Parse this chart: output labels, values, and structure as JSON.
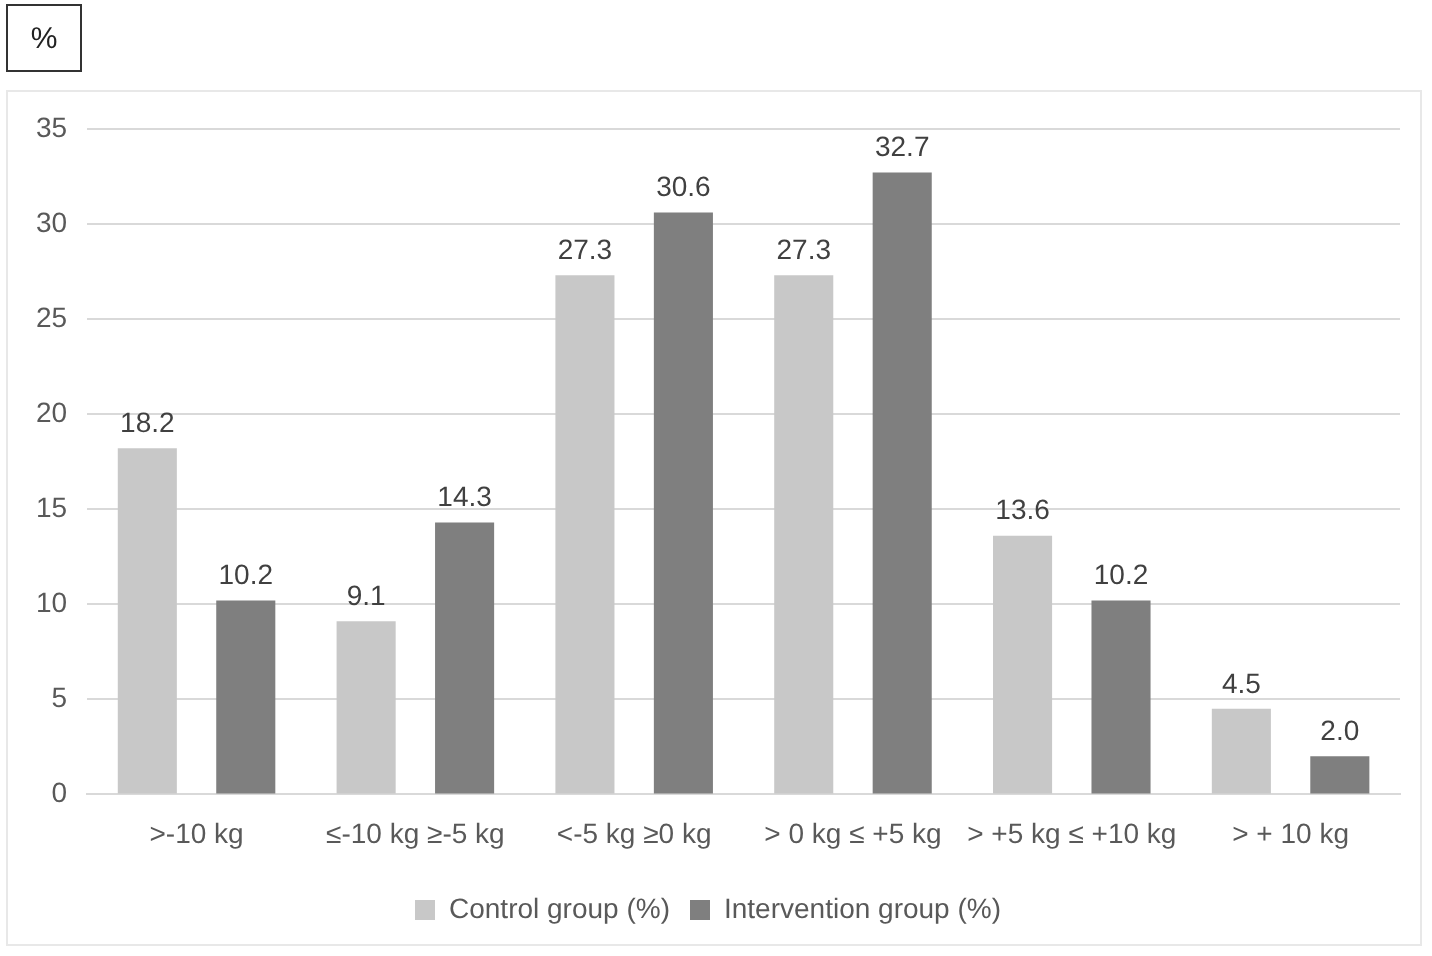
{
  "chart_data": {
    "type": "bar",
    "ylabel": "%",
    "categories": [
      ">-10 kg",
      "≤-10 kg ≥-5 kg",
      "<-5 kg ≥0 kg",
      "> 0 kg ≤ +5 kg",
      "> +5 kg ≤ +10 kg",
      "> + 10 kg"
    ],
    "series": [
      {
        "name": "Control group (%)",
        "color": "#c8c8c8",
        "values": [
          18.2,
          9.1,
          27.3,
          27.3,
          13.6,
          4.5
        ],
        "value_labels": [
          "18.2",
          "9.1",
          "27.3",
          "27.3",
          "13.6",
          "4.5"
        ]
      },
      {
        "name": "Intervention group (%)",
        "color": "#7f7f7f",
        "values": [
          10.2,
          14.3,
          30.6,
          32.7,
          10.2,
          2.0
        ],
        "value_labels": [
          "10.2",
          "14.3",
          "30.6",
          "32.7",
          "10.2",
          "2.0"
        ]
      }
    ],
    "ylim": [
      0,
      35
    ],
    "yticks": [
      0,
      5,
      10,
      15,
      20,
      25,
      30,
      35
    ],
    "grid": "y",
    "legend": "bottom"
  }
}
